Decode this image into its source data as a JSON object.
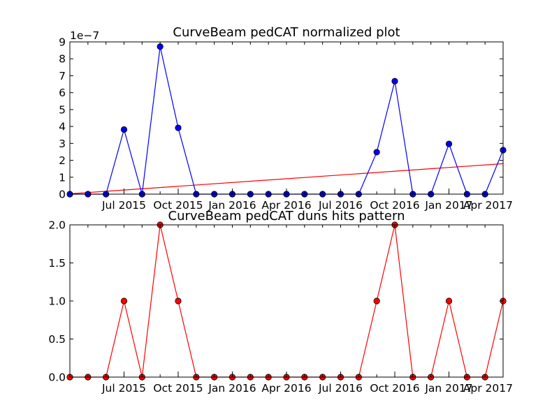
{
  "chart_data": [
    {
      "type": "line",
      "title": "CurveBeam pedCAT normalized plot",
      "offset_text": "1e−7",
      "x": [
        "2015-04",
        "2015-05",
        "2015-06",
        "2015-07",
        "2015-08",
        "2015-09",
        "2015-10",
        "2015-11",
        "2015-12",
        "2016-01",
        "2016-02",
        "2016-03",
        "2016-04",
        "2016-05",
        "2016-06",
        "2016-07",
        "2016-08",
        "2016-09",
        "2016-10",
        "2016-11",
        "2016-12",
        "2017-01",
        "2017-02",
        "2017-03",
        "2017-04"
      ],
      "xticks": [
        {
          "x": "2015-07",
          "label": "Jul 2015"
        },
        {
          "x": "2015-10",
          "label": "Oct 2015"
        },
        {
          "x": "2016-01",
          "label": "Jan 2016"
        },
        {
          "x": "2016-04",
          "label": "Apr 2016"
        },
        {
          "x": "2016-07",
          "label": "Jul 2016"
        },
        {
          "x": "2016-10",
          "label": "Oct 2016"
        },
        {
          "x": "2017-01",
          "label": "Jan 2017"
        },
        {
          "x": "2017-04",
          "label": "Apr 2017"
        }
      ],
      "ylim": [
        0,
        9
      ],
      "yticks": [
        "0",
        "1",
        "2",
        "3",
        "4",
        "5",
        "6",
        "7",
        "8",
        "9"
      ],
      "series": [
        {
          "values": [
            0,
            0,
            0,
            3.82,
            0,
            8.72,
            3.92,
            0,
            0,
            0,
            0,
            0,
            0,
            0,
            0,
            0,
            0,
            2.48,
            6.68,
            0,
            0,
            2.97,
            0,
            0,
            2.6
          ],
          "color": "#0000ff",
          "marker": "circle"
        }
      ],
      "trendline": {
        "start": 0.02,
        "end": 1.8,
        "color": "#ff0000"
      },
      "grid": false
    },
    {
      "type": "line",
      "title": "CurveBeam pedCAT duns hits pattern",
      "x": [
        "2015-04",
        "2015-05",
        "2015-06",
        "2015-07",
        "2015-08",
        "2015-09",
        "2015-10",
        "2015-11",
        "2015-12",
        "2016-01",
        "2016-02",
        "2016-03",
        "2016-04",
        "2016-05",
        "2016-06",
        "2016-07",
        "2016-08",
        "2016-09",
        "2016-10",
        "2016-11",
        "2016-12",
        "2017-01",
        "2017-02",
        "2017-03",
        "2017-04"
      ],
      "xticks": [
        {
          "x": "2015-07",
          "label": "Jul 2015"
        },
        {
          "x": "2015-10",
          "label": "Oct 2015"
        },
        {
          "x": "2016-01",
          "label": "Jan 2016"
        },
        {
          "x": "2016-04",
          "label": "Apr 2016"
        },
        {
          "x": "2016-07",
          "label": "Jul 2016"
        },
        {
          "x": "2016-10",
          "label": "Oct 2016"
        },
        {
          "x": "2017-01",
          "label": "Jan 2017"
        },
        {
          "x": "2017-04",
          "label": "Apr 2017"
        }
      ],
      "ylim": [
        0,
        2
      ],
      "yticks": [
        "0.0",
        "0.5",
        "1.0",
        "1.5",
        "2.0"
      ],
      "series": [
        {
          "values": [
            0,
            0,
            0,
            1,
            0,
            2,
            1,
            0,
            0,
            0,
            0,
            0,
            0,
            0,
            0,
            0,
            0,
            1,
            2,
            0,
            0,
            1,
            0,
            0,
            1
          ],
          "color": "#ff0000",
          "marker": "circle"
        }
      ],
      "grid": false
    }
  ]
}
